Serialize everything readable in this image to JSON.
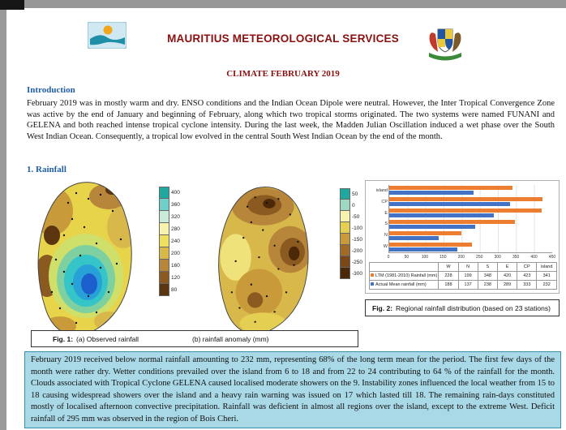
{
  "header": {
    "title": "MAURITIUS METEOROLOGICAL SERVICES",
    "subtitle": "CLIMATE FEBRUARY 2019",
    "left_logo": "mauritius-meteorological-services-logo",
    "right_logo": "mauritius-coat-of-arms"
  },
  "introduction": {
    "heading": "Introduction",
    "body": "February 2019 was in mostly warm and dry. ENSO conditions and the Indian Ocean Dipole were neutral. However, the Inter Tropical Convergence Zone was active by the end of January and beginning of February, along which two tropical storms originated. The two systems were named FUNANI and GELENA and both reached intense tropical cyclone intensity. During the last week, the Madden Julian Oscillation induced a wet phase over the South West Indian Ocean. Consequently, a tropical low evolved in the central South West Indian Ocean by the end of the month."
  },
  "rainfall": {
    "heading": "1. Rainfall",
    "fig1": {
      "label": "Fig. 1:",
      "caption_a": "(a) Observed rainfall",
      "caption_b": "(b) rainfall anomaly (mm)"
    },
    "fig2": {
      "label": "Fig. 2:",
      "caption": "Regional rainfall distribution (based on 23 stations)"
    },
    "observed_colorbar": {
      "labels": [
        "400",
        "360",
        "320",
        "280",
        "240",
        "200",
        "160",
        "120",
        "80"
      ],
      "colors": [
        "#1fa8a0",
        "#6fd0c8",
        "#c9ead8",
        "#f7f3ae",
        "#efdf5f",
        "#d8b84a",
        "#b8863a",
        "#8a5a20",
        "#5a3510"
      ]
    },
    "anomaly_colorbar": {
      "labels": [
        "50",
        "0",
        "-50",
        "-100",
        "-150",
        "-200",
        "-250",
        "-300"
      ],
      "colors": [
        "#1fa8a0",
        "#9fd8c0",
        "#f7f3ae",
        "#e5cf52",
        "#c89a3a",
        "#a06a28",
        "#7a4818",
        "#4a2808"
      ]
    }
  },
  "chart_data": {
    "type": "bar",
    "orientation": "horizontal",
    "title": "Regional rainfall distribution (based on 23 stations)",
    "categories": [
      "island",
      "CP",
      "E",
      "S",
      "N",
      "W"
    ],
    "series": [
      {
        "name": "LTM (1981-2010) Rainfall (mm)",
        "color": "#ED7D31",
        "values": [
          341,
          423,
          420,
          348,
          199,
          228
        ]
      },
      {
        "name": "Actual Mean rainfall (mm)",
        "color": "#4472C4",
        "values": [
          232,
          333,
          289,
          238,
          137,
          188
        ]
      }
    ],
    "xlim": [
      0,
      450
    ],
    "x_ticks": [
      "0",
      "50",
      "100",
      "150",
      "200",
      "250",
      "300",
      "350",
      "400",
      "450"
    ],
    "grid": "vertical",
    "legend_position": "in-table-row-labels",
    "data_table": {
      "columns": [
        "W",
        "N",
        "S",
        "E",
        "CP",
        "island"
      ],
      "rows": [
        {
          "name": "LTM (1981-2010) Rainfall (mm)",
          "color": "#ED7D31",
          "values": [
            228,
            199,
            348,
            420,
            423,
            341
          ]
        },
        {
          "name": "Actual Mean rainfall (mm)",
          "color": "#4472C4",
          "values": [
            188,
            137,
            238,
            289,
            333,
            232
          ]
        }
      ]
    }
  },
  "summary": {
    "body": "February 2019 received below normal rainfall amounting to 232 mm, representing 68% of the long term mean for the period. The first few days of the month were rather dry. Wetter conditions prevailed over the island from 6 to 18 and from 22 to 24 contributing to 64 % of the rainfall for the month. Clouds associated with Tropical Cyclone GELENA caused localised moderate showers on the 9. Instability zones influenced the local weather from 15 to 18 causing widespread showers over the island and a heavy rain warning was issued on 17 which lasted till 18. The remaining rain-days constituted mostly of localised afternoon convective precipitation. Rainfall was deficient in almost all regions over the island, except to the extreme West. Deficit rainfall of 295 mm was observed in the region of Bois Cheri."
  },
  "colors": {
    "title_red": "#8a1010",
    "heading_blue": "#1f5fa8",
    "highlight_bg": "#a9d8e6",
    "ltm_orange": "#ED7D31",
    "actual_blue": "#4472C4"
  }
}
